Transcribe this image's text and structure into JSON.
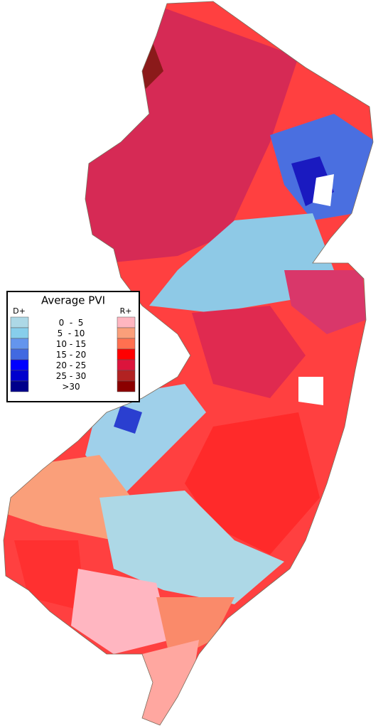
{
  "legend": {
    "title": "Average PVI",
    "left_label": "D+",
    "right_label": "R+",
    "bins": [
      {
        "label": "0  -  5",
        "d_color": "#add8e6",
        "r_color": "#ffb6c1"
      },
      {
        "label": "5  - 10",
        "d_color": "#87ceeb",
        "r_color": "#fa9f7a"
      },
      {
        "label": "10 - 15",
        "d_color": "#6495ed",
        "r_color": "#ff7050"
      },
      {
        "label": "15 - 20",
        "d_color": "#4169e1",
        "r_color": "#ff0000"
      },
      {
        "label": "20 - 25",
        "d_color": "#0000ff",
        "r_color": "#dc143c"
      },
      {
        "label": "25 - 30",
        "d_color": "#0000cd",
        "r_color": "#b22222"
      },
      {
        "label": ">30",
        "d_color": "#00008b",
        "r_color": "#8b0000"
      }
    ]
  }
}
